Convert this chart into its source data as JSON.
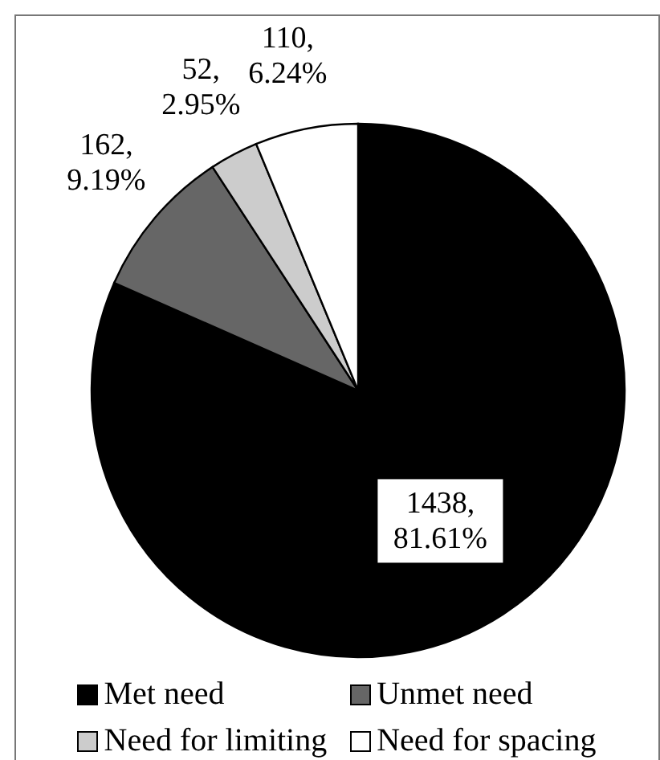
{
  "chart_data": {
    "type": "pie",
    "categories": [
      "Met need",
      "Unmet need",
      "Need for limiting",
      "Need for spacing"
    ],
    "values": [
      1438,
      162,
      52,
      110
    ],
    "colors": [
      "#000000",
      "#666666",
      "#cccccc",
      "#ffffff"
    ],
    "value_labels": [
      "1438, 81.61%",
      "162, 9.19%",
      "52, 2.95%",
      "110, 6.24%"
    ],
    "legend": "bottom"
  }
}
